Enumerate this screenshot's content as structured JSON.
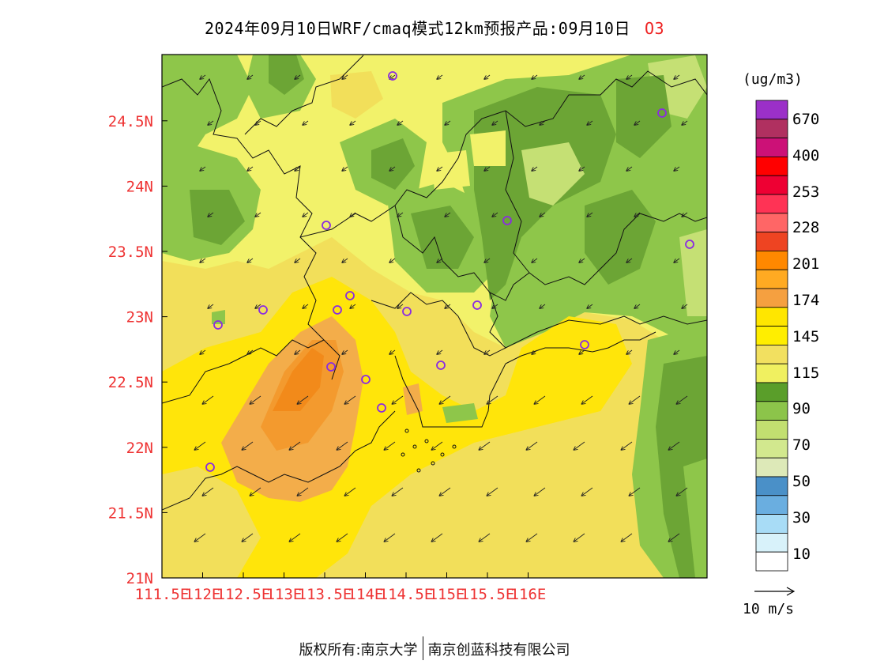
{
  "title": {
    "text": "2024年09月10日WRF/cmaq模式12km预报产品:09月10日",
    "species": "O3",
    "species_color": "#ee2222"
  },
  "axes": {
    "x_ticks": [
      "111.5E",
      "112E",
      "112.5E",
      "113E",
      "113.5E",
      "114E",
      "114.5E",
      "115E",
      "115.5E",
      "116E"
    ],
    "y_ticks": [
      "21N",
      "21.5N",
      "22N",
      "22.5N",
      "23N",
      "23.5N",
      "24N",
      "24.5N"
    ],
    "tick_color": "#ee3333"
  },
  "colorbar": {
    "unit": "(ug/m3)",
    "labels": [
      "670",
      "400",
      "253",
      "228",
      "201",
      "174",
      "145",
      "115",
      "90",
      "70",
      "50",
      "30",
      "10"
    ],
    "colors": [
      "#9b30c8",
      "#b03060",
      "#cc1177",
      "#ff0000",
      "#ee0033",
      "#ff3355",
      "#ff6666",
      "#ee4422",
      "#ff8800",
      "#ffaa22",
      "#f5a040",
      "#ffe600",
      "#ffee00",
      "#f2e060",
      "#f0f060",
      "#5a9e2a",
      "#8cc44a",
      "#c2df70",
      "#d2e88e",
      "#dde9b8",
      "#4a90c8",
      "#6aaee0",
      "#a8dcf6",
      "#d8f2fa",
      "#ffffff"
    ]
  },
  "map_colors": {
    "green_dark": "#6ca535",
    "green_mid": "#8ec64a",
    "green_light": "#c5e074",
    "yellow_light": "#f2f26a",
    "yellow_mid": "#f2df5a",
    "yellow": "#ffe50a",
    "orange_light": "#f3ad4a",
    "orange": "#f39a2e",
    "orange_dark": "#f28a1a",
    "station_marker": "#8a2be2",
    "border": "#111111"
  },
  "wind_scale": {
    "label": "10 m/s"
  },
  "footer": {
    "left": "版权所有:南京大学",
    "right": "南京创蓝科技有限公司"
  }
}
